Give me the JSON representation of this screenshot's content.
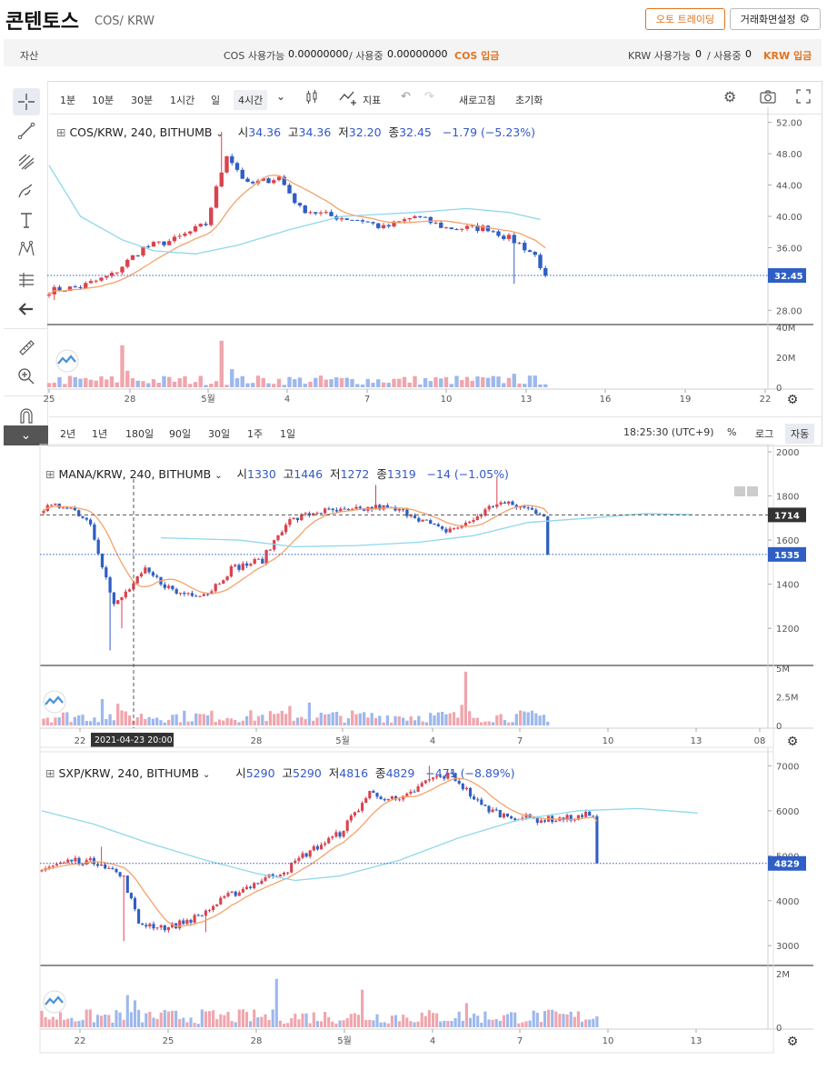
{
  "header": {
    "title": "콘텐토스",
    "pair": "COS/ KRW",
    "auto_trading_label": "오토 트레이딩",
    "screen_settings_label": "거래화면설정"
  },
  "asset_bar": {
    "label": "자산",
    "cos_available_label": "COS 사용가능",
    "cos_available_value": "0.00000000",
    "cos_in_use_label": "/ 사용중",
    "cos_in_use_value": "0.00000000",
    "cos_deposit_label": "COS 입금",
    "krw_available_label": "KRW 사용가능",
    "krw_available_value": "0",
    "krw_in_use_label": "/ 사용중",
    "krw_in_use_value": "0",
    "krw_deposit_label": "KRW 입금"
  },
  "toolbar": {
    "intervals": [
      "1분",
      "10분",
      "30분",
      "1시간",
      "일",
      "4시간"
    ],
    "active_interval": "4시간",
    "indicator_label": "지표",
    "refresh_label": "새로고침",
    "reset_label": "초기화"
  },
  "bottom_bar": {
    "ranges": [
      "2년",
      "1년",
      "180일",
      "90일",
      "30일",
      "1주",
      "1일"
    ],
    "clock": "18:25:30 (UTC+9)",
    "percent_label": "%",
    "log_label": "로그",
    "auto_label": "자동"
  },
  "colors": {
    "up": "#d9434f",
    "down": "#2f5fc4",
    "ma_short": "#f5a26a",
    "ma_long": "#8fd8ea",
    "vol_up": "#f0a5ad",
    "vol_down": "#9db8ec",
    "accent": "#e2731f"
  },
  "charts": [
    {
      "name": "cos",
      "symbol": "COS/KRW, 240, BITHUMB",
      "open_label": "시",
      "open": "34.36",
      "high_label": "고",
      "high": "34.36",
      "low_label": "저",
      "low": "32.20",
      "close_label": "종",
      "close": "32.45",
      "change": "−1.79 (−5.23%)",
      "price_ticks": [
        "52.00",
        "48.00",
        "44.00",
        "40.00",
        "36.00",
        "28.00"
      ],
      "price_tick_values": [
        52,
        48,
        44,
        40,
        36,
        28
      ],
      "price_range": [
        26.3,
        53.0
      ],
      "current_price_label": "32.45",
      "current_price": 32.45,
      "volume_ticks": [
        "40M",
        "20M",
        "0"
      ],
      "volume_tick_values": [
        40,
        20,
        0
      ],
      "volume_range": [
        0,
        40
      ],
      "x_ticks": [
        "25",
        "28",
        "5월",
        "4",
        "7",
        "10",
        "13",
        "16",
        "19",
        "22"
      ],
      "candles": 96,
      "anchors": [
        [
          0,
          30.5
        ],
        [
          6,
          31
        ],
        [
          12,
          32.5
        ],
        [
          18,
          36
        ],
        [
          24,
          37
        ],
        [
          30,
          39
        ],
        [
          34,
          48
        ],
        [
          38,
          44
        ],
        [
          44,
          45
        ],
        [
          48,
          41
        ],
        [
          54,
          40
        ],
        [
          60,
          39.5
        ],
        [
          64,
          38.5
        ],
        [
          70,
          40
        ],
        [
          76,
          38.5
        ],
        [
          84,
          38.5
        ],
        [
          90,
          36.5
        ],
        [
          93,
          35
        ],
        [
          95,
          32.45
        ]
      ],
      "spikes": [
        [
          33,
          50.8
        ],
        [
          1,
          29.3
        ],
        [
          18,
          34.8
        ],
        [
          89,
          31.4
        ]
      ],
      "vol_spikes": [
        [
          14,
          28
        ],
        [
          33,
          31
        ],
        [
          89,
          9
        ],
        [
          15,
          11
        ],
        [
          35,
          12
        ]
      ],
      "vol_base": 6,
      "ma_long": [
        [
          0,
          46.5
        ],
        [
          6,
          40
        ],
        [
          14,
          37
        ],
        [
          20,
          35.6
        ],
        [
          28,
          35.2
        ],
        [
          36,
          36.3
        ],
        [
          46,
          38.3
        ],
        [
          56,
          40
        ],
        [
          70,
          40.5
        ],
        [
          80,
          41
        ],
        [
          88,
          40.5
        ],
        [
          94,
          39.6
        ]
      ],
      "has_dashed_line": false
    },
    {
      "name": "mana",
      "symbol": "MANA/KRW, 240, BITHUMB",
      "open_label": "시",
      "open": "1330",
      "high_label": "고",
      "high": "1446",
      "low_label": "저",
      "low": "1272",
      "close_label": "종",
      "close": "1319",
      "change": "−14 (−1.05%)",
      "price_ticks": [
        "2000",
        "1800",
        "1600",
        "1400",
        "1200"
      ],
      "price_tick_values": [
        2000,
        1800,
        1600,
        1400,
        1200
      ],
      "price_range": [
        1040,
        2000
      ],
      "current_price_label": "1535",
      "current_price": 1535,
      "hline_label": "1714",
      "hline_price": 1714,
      "volume_ticks": [
        "5M",
        "2.5M",
        "0"
      ],
      "volume_tick_values": [
        5,
        2.5,
        0
      ],
      "volume_range": [
        0,
        5
      ],
      "x_ticks": [
        "22",
        "28",
        "5월",
        "4",
        "7",
        "10",
        "13",
        "08"
      ],
      "crosshair_label": "2021-04-23    20:00",
      "candles": 130,
      "anchors": [
        [
          0,
          1740
        ],
        [
          6,
          1760
        ],
        [
          12,
          1680
        ],
        [
          18,
          1300
        ],
        [
          26,
          1460
        ],
        [
          34,
          1360
        ],
        [
          42,
          1360
        ],
        [
          48,
          1470
        ],
        [
          56,
          1510
        ],
        [
          62,
          1680
        ],
        [
          70,
          1730
        ],
        [
          78,
          1730
        ],
        [
          86,
          1750
        ],
        [
          94,
          1720
        ],
        [
          102,
          1640
        ],
        [
          108,
          1670
        ],
        [
          116,
          1770
        ],
        [
          122,
          1750
        ],
        [
          128,
          1720
        ],
        [
          136,
          1780
        ],
        [
          142,
          1730
        ],
        [
          150,
          1720
        ],
        [
          158,
          1690
        ],
        [
          164,
          1720
        ],
        [
          168,
          1600
        ],
        [
          170,
          1535
        ]
      ],
      "spikes": [
        [
          17,
          1100
        ],
        [
          20,
          1200
        ],
        [
          163,
          1470
        ],
        [
          116,
          1880
        ],
        [
          85,
          1850
        ]
      ],
      "vol_spikes": [
        [
          15,
          2.3
        ],
        [
          19,
          1.9
        ],
        [
          63,
          1.7
        ],
        [
          68,
          2.0
        ],
        [
          107,
          1.8
        ],
        [
          108,
          4.7
        ],
        [
          158,
          4.2
        ],
        [
          159,
          2.1
        ],
        [
          150,
          1.3
        ]
      ],
      "vol_base": 1.0,
      "ma_long": [
        [
          30,
          1610
        ],
        [
          50,
          1600
        ],
        [
          64,
          1570
        ],
        [
          80,
          1575
        ],
        [
          96,
          1590
        ],
        [
          110,
          1620
        ],
        [
          124,
          1680
        ],
        [
          140,
          1700
        ],
        [
          154,
          1720
        ],
        [
          166,
          1715
        ]
      ],
      "has_dashed_line": true
    },
    {
      "name": "sxp",
      "symbol": "SXP/KRW, 240, BITHUMB",
      "open_label": "시",
      "open": "5290",
      "high_label": "고",
      "high": "5290",
      "low_label": "저",
      "low": "4816",
      "close_label": "종",
      "close": "4829",
      "change": "−471 (−8.89%)",
      "price_ticks": [
        "7000",
        "6000",
        "5000",
        "4000",
        "3000"
      ],
      "price_tick_values": [
        7000,
        6000,
        5000,
        4000,
        3000
      ],
      "price_range": [
        2600,
        7250
      ],
      "current_price_label": "4829",
      "current_price": 4829,
      "volume_ticks": [
        "2M",
        "0"
      ],
      "volume_tick_values": [
        2,
        0
      ],
      "volume_range": [
        0,
        2.2
      ],
      "x_ticks": [
        "22",
        "25",
        "28",
        "5월",
        "4",
        "7",
        "10",
        "13"
      ],
      "candles": 150,
      "anchors": [
        [
          0,
          4700
        ],
        [
          8,
          4900
        ],
        [
          16,
          4850
        ],
        [
          22,
          4500
        ],
        [
          26,
          3500
        ],
        [
          34,
          3400
        ],
        [
          42,
          3650
        ],
        [
          50,
          4100
        ],
        [
          60,
          4500
        ],
        [
          66,
          4700
        ],
        [
          70,
          5000
        ],
        [
          80,
          5500
        ],
        [
          88,
          6400
        ],
        [
          96,
          6200
        ],
        [
          104,
          6700
        ],
        [
          110,
          6800
        ],
        [
          118,
          6100
        ],
        [
          124,
          5900
        ],
        [
          134,
          5800
        ],
        [
          144,
          5850
        ],
        [
          154,
          6100
        ],
        [
          162,
          5700
        ],
        [
          170,
          5750
        ],
        [
          176,
          5300
        ],
        [
          180,
          4829
        ]
      ],
      "spikes": [
        [
          22,
          3100
        ],
        [
          44,
          3300
        ],
        [
          175,
          4550
        ],
        [
          104,
          7000
        ],
        [
          16,
          5200
        ]
      ],
      "vol_spikes": [
        [
          23,
          1.2
        ],
        [
          25,
          1.0
        ],
        [
          63,
          1.8
        ],
        [
          86,
          1.4
        ],
        [
          114,
          0.9
        ],
        [
          150,
          0.9
        ],
        [
          174,
          1.6
        ]
      ],
      "vol_base": 0.5,
      "ma_long": [
        [
          0,
          6000
        ],
        [
          14,
          5700
        ],
        [
          28,
          5300
        ],
        [
          44,
          4900
        ],
        [
          58,
          4600
        ],
        [
          68,
          4450
        ],
        [
          80,
          4550
        ],
        [
          96,
          4900
        ],
        [
          112,
          5400
        ],
        [
          128,
          5800
        ],
        [
          144,
          6000
        ],
        [
          160,
          6050
        ],
        [
          176,
          5950
        ]
      ],
      "has_dashed_line": false
    }
  ]
}
